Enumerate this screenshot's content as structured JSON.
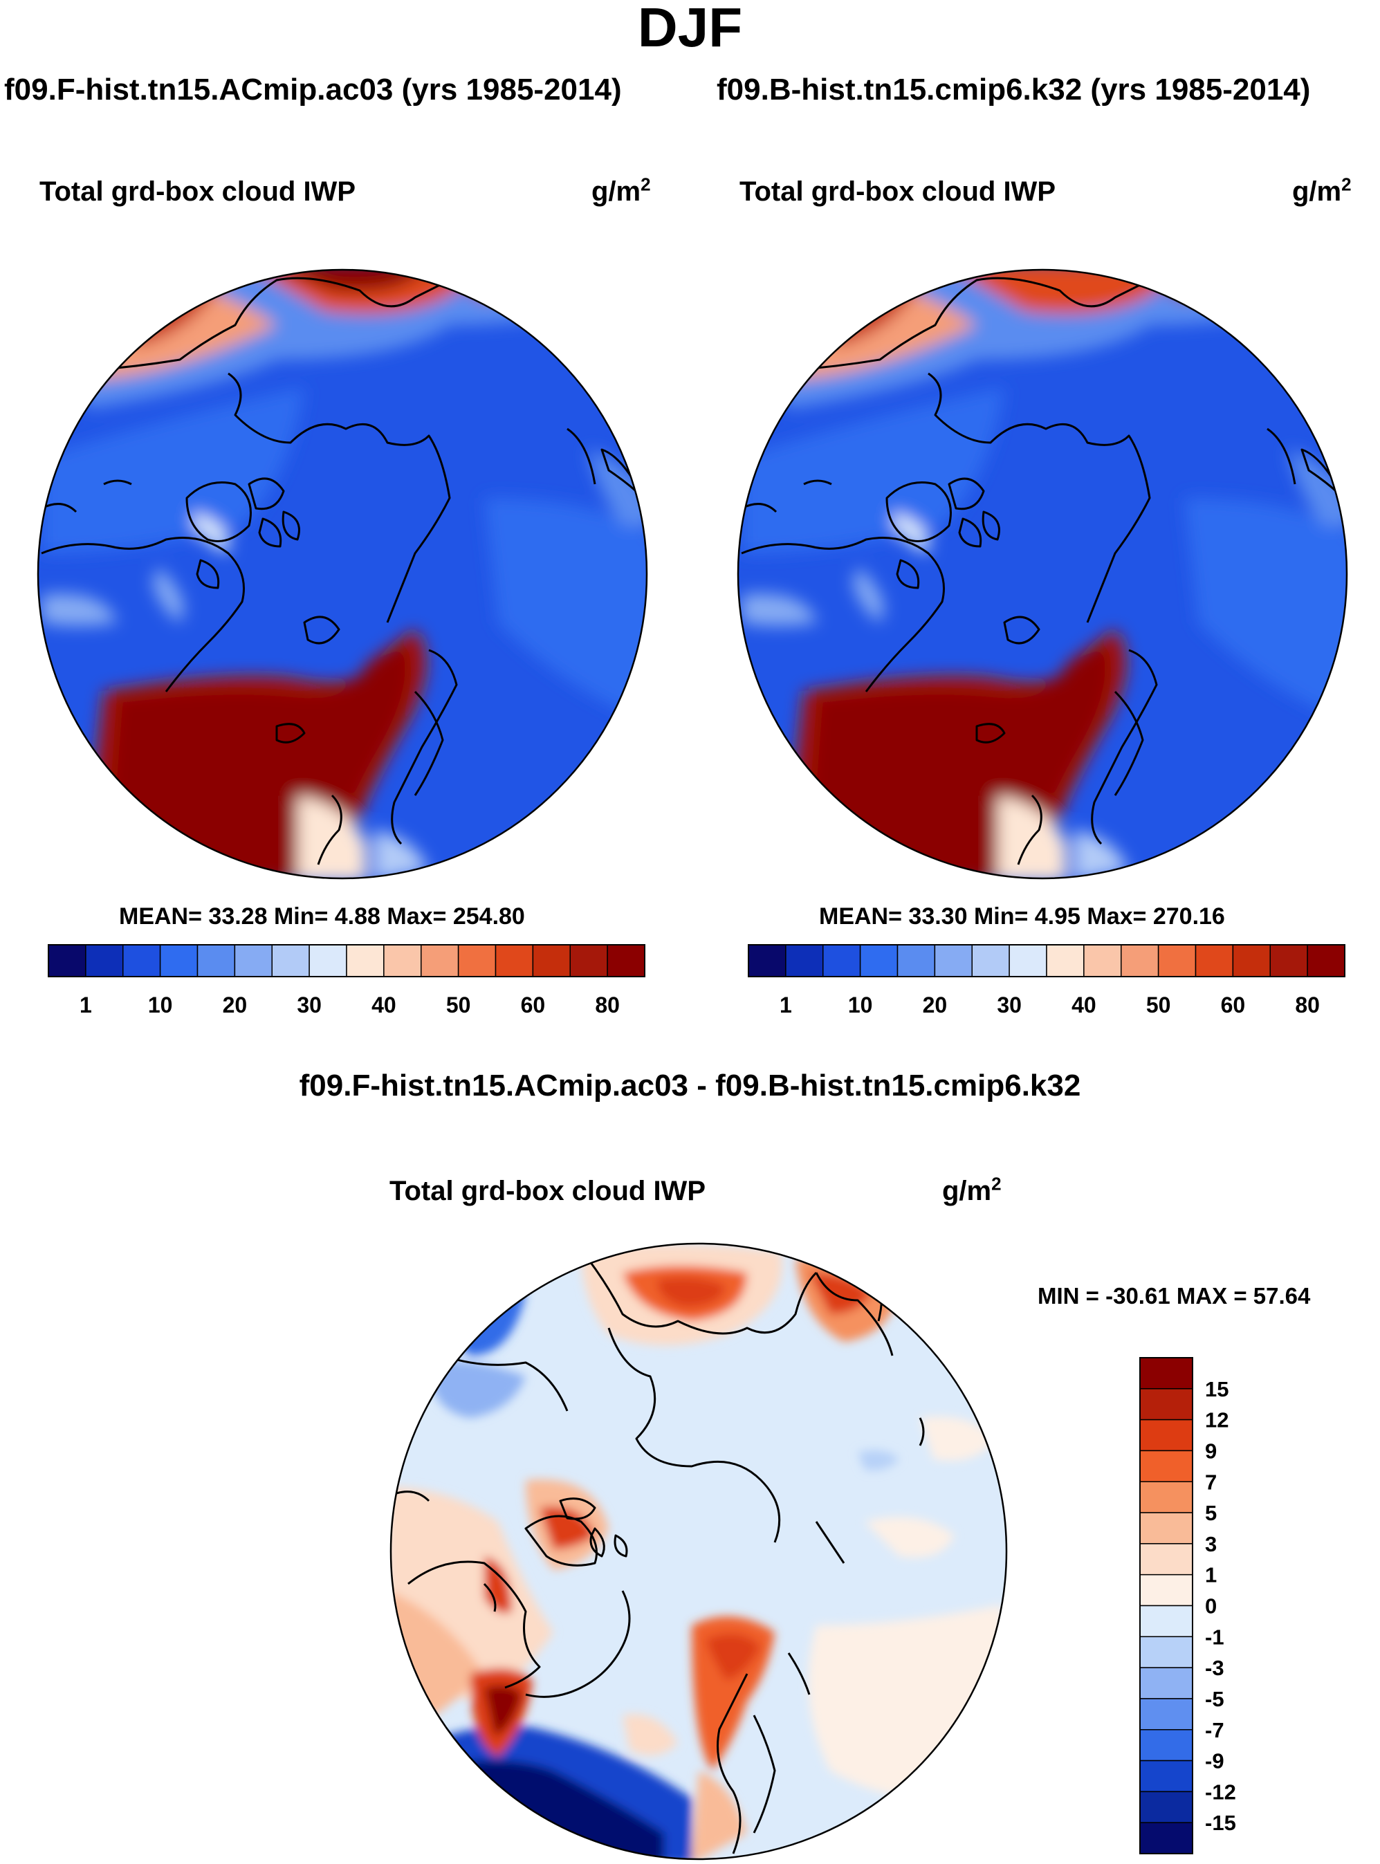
{
  "title": "DJF",
  "panels": [
    {
      "run_title": "f09.F-hist.tn15.ACmip.ac03 (yrs 1985-2014)",
      "variable": "Total grd-box cloud IWP",
      "units": "g/m",
      "units_sup": "2",
      "stats": "MEAN=  33.28  Min=   4.88  Max= 254.80"
    },
    {
      "run_title": "f09.B-hist.tn15.cmip6.k32 (yrs 1985-2014)",
      "variable": "Total grd-box cloud IWP",
      "units": "g/m",
      "units_sup": "2",
      "stats": "MEAN=  33.30  Min=   4.95  Max= 270.16"
    }
  ],
  "difference": {
    "title": "f09.F-hist.tn15.ACmip.ac03 - f09.B-hist.tn15.cmip6.k32",
    "variable": "Total grd-box cloud IWP",
    "units": "g/m",
    "units_sup": "2",
    "minmax": "MIN = -30.61 MAX =  57.64"
  },
  "chart_data": [
    {
      "type": "heatmap",
      "projection": "north-polar-stereographic",
      "title": "Total grd-box cloud IWP",
      "units": "g/m2",
      "mean": 33.28,
      "min": 4.88,
      "max": 254.8,
      "colorbar_labels": [
        "1",
        "10",
        "20",
        "30",
        "40",
        "50",
        "60",
        "80"
      ],
      "colorbar_colors": [
        "#08086b",
        "#0d2fb8",
        "#1e50e0",
        "#2f6cf0",
        "#5a8cf0",
        "#86abf3",
        "#b2cbf7",
        "#dbe9fb",
        "#fde6d5",
        "#fac6aa",
        "#f59e78",
        "#f07040",
        "#e0481b",
        "#c52e0c",
        "#a5180a",
        "#8b0000"
      ]
    },
    {
      "type": "heatmap",
      "projection": "north-polar-stereographic",
      "title": "Total grd-box cloud IWP",
      "units": "g/m2",
      "mean": 33.3,
      "min": 4.95,
      "max": 270.16,
      "colorbar_labels": [
        "1",
        "10",
        "20",
        "30",
        "40",
        "50",
        "60",
        "80"
      ],
      "colorbar_colors": [
        "#08086b",
        "#0d2fb8",
        "#1e50e0",
        "#2f6cf0",
        "#5a8cf0",
        "#86abf3",
        "#b2cbf7",
        "#dbe9fb",
        "#fde6d5",
        "#fac6aa",
        "#f59e78",
        "#f07040",
        "#e0481b",
        "#c52e0c",
        "#a5180a",
        "#8b0000"
      ]
    },
    {
      "type": "heatmap",
      "projection": "north-polar-stereographic",
      "title": "f09.F-hist.tn15.ACmip.ac03 - f09.B-hist.tn15.cmip6.k32",
      "units": "g/m2",
      "min": -30.61,
      "max": 57.64,
      "colorbar_labels": [
        "15",
        "12",
        "9",
        "7",
        "5",
        "3",
        "1",
        "0",
        "-1",
        "-3",
        "-5",
        "-7",
        "-9",
        "-12",
        "-15"
      ],
      "colorbar_colors": [
        "#8b0000",
        "#b5200a",
        "#dd3c12",
        "#f0602a",
        "#f5915f",
        "#f9bb98",
        "#fcdcc8",
        "#fdf0e6",
        "#dcebfb",
        "#b7d1f8",
        "#8fb2f3",
        "#5f8ff0",
        "#336ce8",
        "#1545cc",
        "#0b2aa0",
        "#050b6e"
      ]
    }
  ]
}
